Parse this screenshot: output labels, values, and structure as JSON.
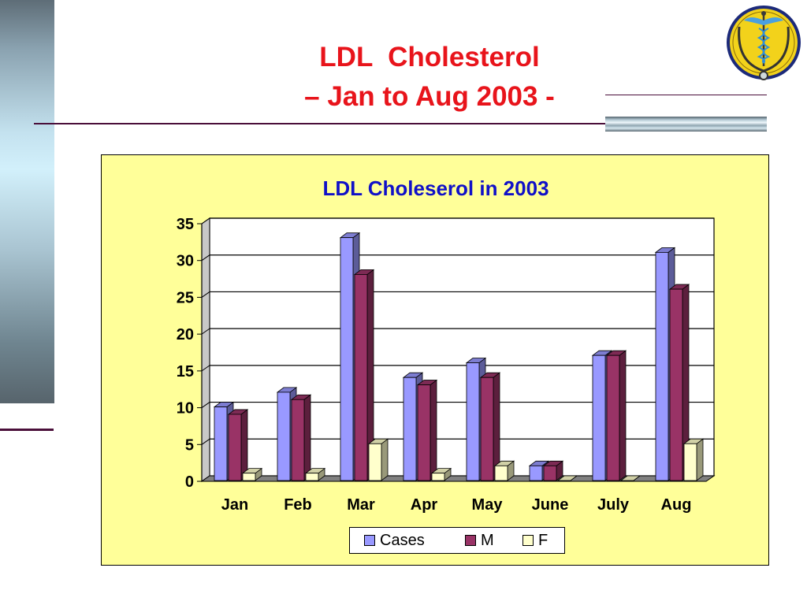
{
  "slide": {
    "title_line1": "LDL  Cholesterol",
    "title_line2": "– Jan to Aug 2003 -"
  },
  "colors": {
    "title": "#e8141b",
    "chart_title": "#1010c8",
    "chart_background": "#ffff99",
    "accent_rule": "#4a0f3a"
  },
  "logo": {
    "icon": "caduceus-stethoscope-emblem-icon"
  },
  "chart_data": {
    "type": "bar",
    "style": "3d-clustered",
    "title": "LDL Choleserol in 2003",
    "categories": [
      "Jan",
      "Feb",
      "Mar",
      "Apr",
      "May",
      "June",
      "July",
      "Aug"
    ],
    "series": [
      {
        "name": "Cases",
        "color": "#9999ff",
        "values": [
          10,
          12,
          33,
          14,
          16,
          2,
          17,
          31
        ]
      },
      {
        "name": "M",
        "color": "#993366",
        "values": [
          9,
          11,
          28,
          13,
          14,
          2,
          17,
          26
        ]
      },
      {
        "name": "F",
        "color": "#ffffcc",
        "values": [
          1,
          1,
          5,
          1,
          2,
          0,
          0,
          5
        ]
      }
    ],
    "ylim": [
      0,
      35
    ],
    "yticks": [
      0,
      5,
      10,
      15,
      20,
      25,
      30,
      35
    ],
    "grid": true,
    "legend": "bottom",
    "xlabel": "",
    "ylabel": ""
  }
}
